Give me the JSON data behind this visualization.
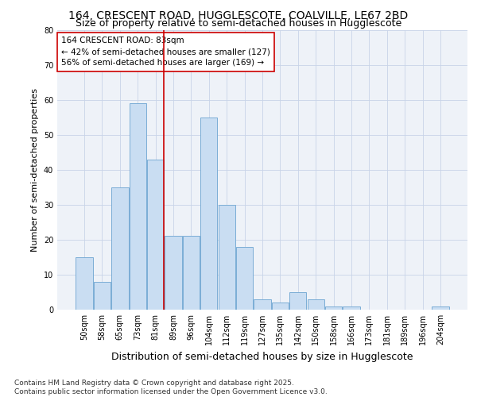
{
  "title_line1": "164, CRESCENT ROAD, HUGGLESCOTE, COALVILLE, LE67 2BD",
  "title_line2": "Size of property relative to semi-detached houses in Hugglescote",
  "xlabel": "Distribution of semi-detached houses by size in Hugglescote",
  "ylabel": "Number of semi-detached properties",
  "categories": [
    "50sqm",
    "58sqm",
    "65sqm",
    "73sqm",
    "81sqm",
    "89sqm",
    "96sqm",
    "104sqm",
    "112sqm",
    "119sqm",
    "127sqm",
    "135sqm",
    "142sqm",
    "150sqm",
    "158sqm",
    "166sqm",
    "173sqm",
    "181sqm",
    "189sqm",
    "196sqm",
    "204sqm"
  ],
  "values": [
    15,
    8,
    35,
    59,
    43,
    21,
    21,
    55,
    30,
    18,
    3,
    2,
    5,
    3,
    1,
    1,
    0,
    0,
    0,
    0,
    1
  ],
  "bar_color": "#c9ddf2",
  "bar_edge_color": "#7badd6",
  "vline_color": "#cc0000",
  "vline_x_index": 4,
  "annotation_text_line1": "164 CRESCENT ROAD: 83sqm",
  "annotation_text_line2": "← 42% of semi-detached houses are smaller (127)",
  "annotation_text_line3": "56% of semi-detached houses are larger (169) →",
  "annotation_box_facecolor": "#ffffff",
  "annotation_box_edgecolor": "#cc0000",
  "ylim": [
    0,
    80
  ],
  "yticks": [
    0,
    10,
    20,
    30,
    40,
    50,
    60,
    70,
    80
  ],
  "footer_text": "Contains HM Land Registry data © Crown copyright and database right 2025.\nContains public sector information licensed under the Open Government Licence v3.0.",
  "plot_bg_color": "#eef2f8",
  "fig_bg_color": "#ffffff",
  "grid_color": "#c8d4e8",
  "title_fontsize": 10,
  "subtitle_fontsize": 9,
  "tick_fontsize": 7,
  "ylabel_fontsize": 8,
  "xlabel_fontsize": 9,
  "annotation_fontsize": 7.5,
  "footer_fontsize": 6.5
}
